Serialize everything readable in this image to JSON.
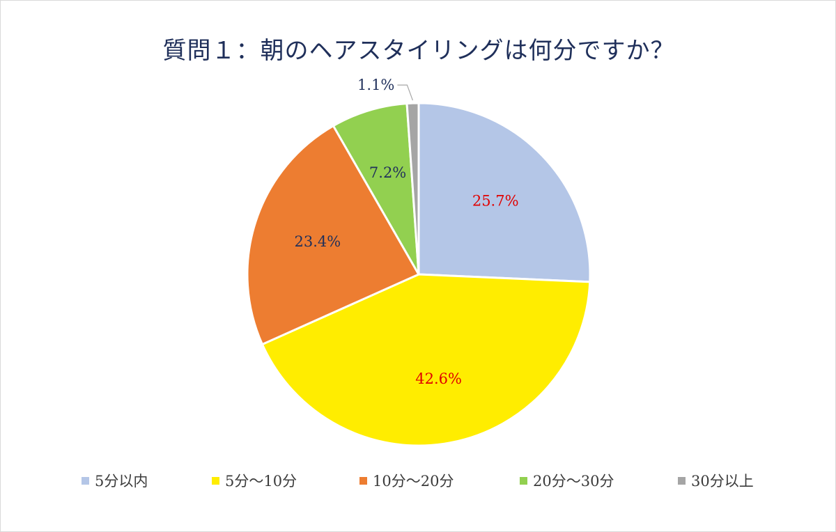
{
  "chart_data": {
    "type": "pie",
    "title": "質問１：朝のヘアスタイリングは何分ですか？",
    "slices": [
      {
        "label": "5分以内",
        "value": 25.7,
        "display": "25.7%",
        "color": "#b4c6e7",
        "label_color": "#e00000"
      },
      {
        "label": "5分～10分",
        "value": 42.6,
        "display": "42.6%",
        "color": "#ffed00",
        "label_color": "#e00000"
      },
      {
        "label": "10分～20分",
        "value": 23.4,
        "display": "23.4%",
        "color": "#ed7d31",
        "label_color": "#1f2f5a"
      },
      {
        "label": "20分～30分",
        "value": 7.2,
        "display": "7.2%",
        "color": "#92d050",
        "label_color": "#1f2f5a"
      },
      {
        "label": "30分以上",
        "value": 1.1,
        "display": "1.1%",
        "color": "#a5a5a5",
        "label_color": "#1f2f5a"
      }
    ],
    "legend_position": "bottom",
    "start_angle": "12 o'clock",
    "direction": "clockwise"
  }
}
